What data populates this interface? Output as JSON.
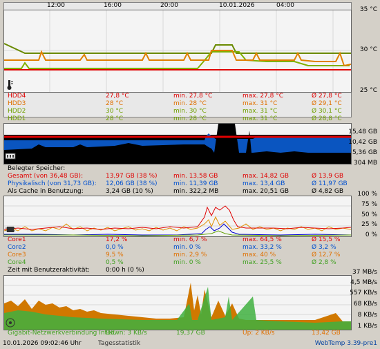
{
  "temp": {
    "time_labels": [
      "12:00",
      "16:00",
      "20:00",
      "10.01.2026",
      "04:00"
    ],
    "axis_labels": [
      "35 °C",
      "30 °C",
      "25 °C"
    ],
    "rows": [
      {
        "name": "HDD4",
        "cur": "27,8 °C",
        "min": "min. 27,8 °C",
        "max": "max. 27,8 °C",
        "avg": "Ø 27,8 °C"
      },
      {
        "name": "HDD3",
        "cur": "28 °C",
        "min": "min. 28 °C",
        "max": "max. 31 °C",
        "avg": "Ø 29,1 °C"
      },
      {
        "name": "HDD2",
        "cur": "30 °C",
        "min": "min. 30 °C",
        "max": "max. 31 °C",
        "avg": "Ø 30,1 °C"
      },
      {
        "name": "HDD1",
        "cur": "28 °C",
        "min": "min. 28 °C",
        "max": "max. 31 °C",
        "avg": "Ø 28,8 °C"
      }
    ],
    "colors": {
      "hdd4": "#e00000",
      "hdd3": "#e07000",
      "hdd2": "#70a000",
      "hdd1": "#70a000"
    }
  },
  "memory": {
    "axis_labels": [
      "15,48 GB",
      "10,42 GB",
      "5,36 GB",
      "304 MB"
    ],
    "title": "Belegter Speicher:",
    "rows": [
      {
        "name": "Gesamt (von 36,48 GB):",
        "cur": "13,97 GB (38 %)",
        "min": "min. 13,58 GB",
        "max": "max. 14,82 GB",
        "avg": "Ø 13,9 GB"
      },
      {
        "name": "Physikalisch (von 31,73 GB):",
        "cur": "12,06 GB (38 %)",
        "min": "min. 11,39 GB",
        "max": "max. 13,4 GB",
        "avg": "Ø 11,97 GB"
      },
      {
        "name": "Als Cache in Benutzung:",
        "cur": "3,24 GB (10 %)",
        "min": "min. 322,2 MB",
        "max": "max. 20,51 GB",
        "avg": "Ø 4,82 GB"
      }
    ]
  },
  "cpu": {
    "axis_labels": [
      "100 %",
      "75 %",
      "50 %",
      "25 %",
      "0 %"
    ],
    "rows": [
      {
        "name": "Core1",
        "cur": "17,2 %",
        "min": "min. 6,7 %",
        "max": "max. 64,5 %",
        "avg": "Ø 15,5 %"
      },
      {
        "name": "Core2",
        "cur": "0,0 %",
        "min": "min. 0 %",
        "max": "max. 33,2 %",
        "avg": "Ø 3,2 %"
      },
      {
        "name": "Core3",
        "cur": "9,5 %",
        "min": "min. 2,9 %",
        "max": "max. 40 %",
        "avg": "Ø 12,7 %"
      },
      {
        "name": "Core4",
        "cur": "0,5 %",
        "min": "min. 0 %",
        "max": "max. 25,5 %",
        "avg": "Ø 2,8 %"
      }
    ],
    "activity_label": "Zeit mit Benutzeraktivität:",
    "activity_value": "0:00 h (0 %)"
  },
  "network": {
    "axis_labels": [
      "37 MB/s",
      "4,5 MB/s",
      "557 KB/s",
      "68 KB/s",
      "8 KB/s",
      "1 KB/s"
    ],
    "name": "Gigabit-Netzwerkverbindung Intel(",
    "down": "Down: 3 KB/s",
    "down_total": "19,37 GB",
    "up": "Up: 2 KB/s",
    "up_total": "13,42 GB"
  },
  "status": {
    "datetime": "10.01.2026 09:02:46 Uhr",
    "stats_link": "Tagesstatistik",
    "version": "WebTemp 3.39-pre1"
  }
}
